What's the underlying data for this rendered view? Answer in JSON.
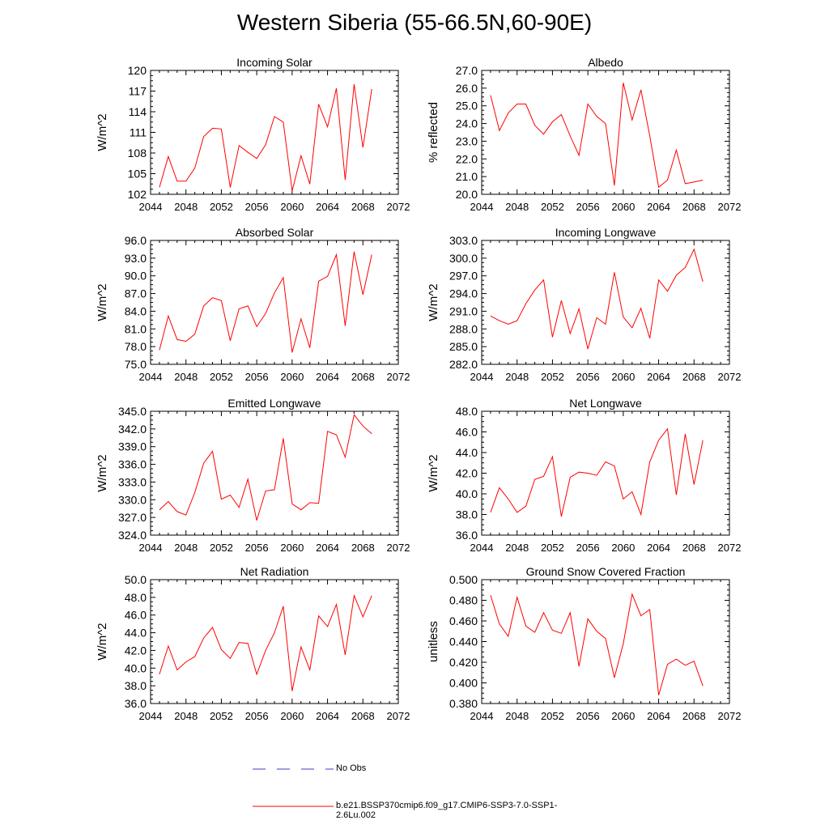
{
  "title": "Western Siberia (55-66.5N,60-90E)",
  "legend": {
    "obs_label": "No Obs",
    "model_label": "b.e21.BSSP370cmip6.f09_g17.CMIP6-SSP3-7.0-SSP1-2.6Lu.002",
    "obs_color": "#3a3acd",
    "model_color": "#ff0000"
  },
  "chart_data": [
    {
      "type": "line",
      "title": "Incoming Solar",
      "ylabel": "W/m^2",
      "xlim": [
        2044,
        2072
      ],
      "ylim": [
        102,
        120
      ],
      "xticks": [
        2044,
        2048,
        2052,
        2056,
        2060,
        2064,
        2068,
        2072
      ],
      "yticks": [
        "102",
        "105",
        "108",
        "111",
        "114",
        "117",
        "120"
      ],
      "x": [
        2045,
        2046,
        2047,
        2048,
        2049,
        2050,
        2051,
        2052,
        2053,
        2054,
        2055,
        2056,
        2057,
        2058,
        2059,
        2060,
        2061,
        2062,
        2063,
        2064,
        2065,
        2066,
        2067,
        2068,
        2069
      ],
      "series": [
        {
          "values": [
            103.0,
            107.5,
            103.9,
            103.9,
            105.8,
            110.4,
            111.6,
            111.5,
            103.0,
            109.1,
            108.1,
            107.2,
            109.2,
            113.3,
            112.5,
            102.5,
            107.6,
            103.5,
            115.1,
            111.8,
            117.4,
            104.1,
            118.0,
            108.8,
            117.3
          ],
          "color": "#ff0000"
        }
      ]
    },
    {
      "type": "line",
      "title": "Albedo",
      "ylabel": "% reflected",
      "xlim": [
        2044,
        2072
      ],
      "ylim": [
        20.0,
        27.0
      ],
      "xticks": [
        2044,
        2048,
        2052,
        2056,
        2060,
        2064,
        2068,
        2072
      ],
      "yticks": [
        "20.0",
        "21.0",
        "22.0",
        "23.0",
        "24.0",
        "25.0",
        "26.0",
        "27.0"
      ],
      "x": [
        2045,
        2046,
        2047,
        2048,
        2049,
        2050,
        2051,
        2052,
        2053,
        2054,
        2055,
        2056,
        2057,
        2058,
        2059,
        2060,
        2061,
        2062,
        2063,
        2064,
        2065,
        2066,
        2067,
        2068,
        2069
      ],
      "series": [
        {
          "values": [
            25.6,
            23.6,
            24.6,
            25.1,
            25.1,
            23.9,
            23.4,
            24.1,
            24.5,
            23.3,
            22.2,
            25.1,
            24.4,
            24.0,
            20.5,
            26.3,
            24.2,
            25.9,
            23.3,
            20.4,
            20.8,
            22.5,
            20.6,
            20.7,
            20.8
          ],
          "color": "#ff0000"
        }
      ]
    },
    {
      "type": "line",
      "title": "Absorbed Solar",
      "ylabel": "W/m^2",
      "xlim": [
        2044,
        2072
      ],
      "ylim": [
        75.0,
        96.0
      ],
      "xticks": [
        2044,
        2048,
        2052,
        2056,
        2060,
        2064,
        2068,
        2072
      ],
      "yticks": [
        "75.0",
        "78.0",
        "81.0",
        "84.0",
        "87.0",
        "90.0",
        "93.0",
        "96.0"
      ],
      "x": [
        2045,
        2046,
        2047,
        2048,
        2049,
        2050,
        2051,
        2052,
        2053,
        2054,
        2055,
        2056,
        2057,
        2058,
        2059,
        2060,
        2061,
        2062,
        2063,
        2064,
        2065,
        2066,
        2067,
        2068,
        2069
      ],
      "series": [
        {
          "values": [
            77.4,
            83.2,
            79.2,
            78.9,
            80.1,
            84.9,
            86.3,
            85.8,
            79.0,
            84.4,
            84.9,
            81.4,
            83.6,
            87.1,
            89.7,
            77.0,
            82.7,
            77.8,
            89.1,
            89.9,
            93.6,
            81.5,
            94.1,
            86.8,
            93.6
          ],
          "color": "#ff0000"
        }
      ]
    },
    {
      "type": "line",
      "title": "Incoming Longwave",
      "ylabel": "W/m^2",
      "xlim": [
        2044,
        2072
      ],
      "ylim": [
        282.0,
        303.0
      ],
      "xticks": [
        2044,
        2048,
        2052,
        2056,
        2060,
        2064,
        2068,
        2072
      ],
      "yticks": [
        "282.0",
        "285.0",
        "288.0",
        "291.0",
        "294.0",
        "297.0",
        "300.0",
        "303.0"
      ],
      "x": [
        2045,
        2046,
        2047,
        2048,
        2049,
        2050,
        2051,
        2052,
        2053,
        2054,
        2055,
        2056,
        2057,
        2058,
        2059,
        2060,
        2061,
        2062,
        2063,
        2064,
        2065,
        2066,
        2067,
        2068,
        2069
      ],
      "series": [
        {
          "values": [
            290.2,
            289.4,
            288.8,
            289.4,
            292.3,
            294.6,
            296.3,
            286.6,
            292.8,
            287.2,
            291.4,
            284.6,
            289.9,
            288.8,
            297.6,
            290.0,
            288.2,
            291.5,
            286.4,
            296.3,
            294.4,
            297.1,
            298.4,
            301.5,
            296.0
          ],
          "color": "#ff0000"
        }
      ]
    },
    {
      "type": "line",
      "title": "Emitted Longwave",
      "ylabel": "W/m^2",
      "xlim": [
        2044,
        2072
      ],
      "ylim": [
        324.0,
        345.0
      ],
      "xticks": [
        2044,
        2048,
        2052,
        2056,
        2060,
        2064,
        2068,
        2072
      ],
      "yticks": [
        "324.0",
        "327.0",
        "330.0",
        "333.0",
        "336.0",
        "339.0",
        "342.0",
        "345.0"
      ],
      "x": [
        2045,
        2046,
        2047,
        2048,
        2049,
        2050,
        2051,
        2052,
        2053,
        2054,
        2055,
        2056,
        2057,
        2058,
        2059,
        2060,
        2061,
        2062,
        2063,
        2064,
        2065,
        2066,
        2067,
        2068,
        2069
      ],
      "series": [
        {
          "values": [
            328.3,
            329.7,
            328.0,
            327.4,
            331.2,
            336.2,
            338.2,
            330.1,
            330.8,
            328.7,
            333.5,
            326.5,
            331.5,
            331.7,
            340.4,
            329.3,
            328.3,
            329.5,
            329.4,
            341.6,
            341.0,
            337.2,
            344.4,
            342.5,
            341.2
          ],
          "color": "#ff0000"
        }
      ]
    },
    {
      "type": "line",
      "title": "Net Longwave",
      "ylabel": "W/m^2",
      "xlim": [
        2044,
        2072
      ],
      "ylim": [
        36.0,
        48.0
      ],
      "xticks": [
        2044,
        2048,
        2052,
        2056,
        2060,
        2064,
        2068,
        2072
      ],
      "yticks": [
        "36.0",
        "38.0",
        "40.0",
        "42.0",
        "44.0",
        "46.0",
        "48.0"
      ],
      "x": [
        2045,
        2046,
        2047,
        2048,
        2049,
        2050,
        2051,
        2052,
        2053,
        2054,
        2055,
        2056,
        2057,
        2058,
        2059,
        2060,
        2061,
        2062,
        2063,
        2064,
        2065,
        2066,
        2067,
        2068,
        2069
      ],
      "series": [
        {
          "values": [
            38.2,
            40.6,
            39.5,
            38.2,
            38.8,
            41.4,
            41.7,
            43.6,
            37.8,
            41.6,
            42.1,
            42.0,
            41.8,
            43.1,
            42.7,
            39.5,
            40.2,
            38.0,
            43.1,
            45.2,
            46.3,
            39.9,
            45.8,
            40.9,
            45.2
          ],
          "color": "#ff0000"
        }
      ]
    },
    {
      "type": "line",
      "title": "Net Radiation",
      "ylabel": "W/m^2",
      "xlim": [
        2044,
        2072
      ],
      "ylim": [
        36.0,
        50.0
      ],
      "xticks": [
        2044,
        2048,
        2052,
        2056,
        2060,
        2064,
        2068,
        2072
      ],
      "yticks": [
        "36.0",
        "38.0",
        "40.0",
        "42.0",
        "44.0",
        "46.0",
        "48.0",
        "50.0"
      ],
      "x": [
        2045,
        2046,
        2047,
        2048,
        2049,
        2050,
        2051,
        2052,
        2053,
        2054,
        2055,
        2056,
        2057,
        2058,
        2059,
        2060,
        2061,
        2062,
        2063,
        2064,
        2065,
        2066,
        2067,
        2068,
        2069
      ],
      "series": [
        {
          "values": [
            39.3,
            42.5,
            39.8,
            40.7,
            41.3,
            43.4,
            44.6,
            42.1,
            41.1,
            42.9,
            42.8,
            39.3,
            42.0,
            44.0,
            47.0,
            37.4,
            42.4,
            39.8,
            45.9,
            44.7,
            47.2,
            41.5,
            48.2,
            45.8,
            48.2
          ],
          "color": "#ff0000"
        }
      ]
    },
    {
      "type": "line",
      "title": "Ground Snow Covered Fraction",
      "ylabel": "unitless",
      "xlim": [
        2044,
        2072
      ],
      "ylim": [
        0.38,
        0.5
      ],
      "xticks": [
        2044,
        2048,
        2052,
        2056,
        2060,
        2064,
        2068,
        2072
      ],
      "yticks": [
        "0.380",
        "0.400",
        "0.420",
        "0.440",
        "0.460",
        "0.480",
        "0.500"
      ],
      "x": [
        2045,
        2046,
        2047,
        2048,
        2049,
        2050,
        2051,
        2052,
        2053,
        2054,
        2055,
        2056,
        2057,
        2058,
        2059,
        2060,
        2061,
        2062,
        2063,
        2064,
        2065,
        2066,
        2067,
        2068,
        2069
      ],
      "series": [
        {
          "values": [
            0.485,
            0.457,
            0.445,
            0.483,
            0.455,
            0.449,
            0.468,
            0.451,
            0.448,
            0.468,
            0.416,
            0.462,
            0.45,
            0.443,
            0.405,
            0.438,
            0.486,
            0.465,
            0.471,
            0.388,
            0.418,
            0.423,
            0.417,
            0.421,
            0.397
          ],
          "color": "#ff0000"
        }
      ]
    }
  ]
}
